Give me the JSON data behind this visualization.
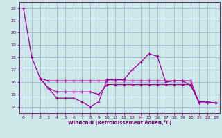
{
  "xlabel": "Windchill (Refroidissement éolien,°C)",
  "background_color": "#cce8e8",
  "grid_color": "#aaaacc",
  "line_color": "#990099",
  "ylim": [
    13.5,
    22.5
  ],
  "xlim": [
    -0.5,
    23.5
  ],
  "yticks": [
    14,
    15,
    16,
    17,
    18,
    19,
    20,
    21,
    22
  ],
  "xticks": [
    0,
    1,
    2,
    3,
    4,
    5,
    6,
    7,
    8,
    9,
    10,
    11,
    12,
    13,
    14,
    15,
    16,
    17,
    18,
    19,
    20,
    21,
    22,
    23
  ],
  "series": [
    {
      "x": [
        0,
        1,
        2,
        3,
        4,
        5,
        6,
        7,
        8,
        9,
        10,
        11,
        12,
        13,
        14,
        15,
        16,
        17,
        18,
        19,
        20,
        21,
        22,
        23
      ],
      "y": [
        22.0,
        18.0,
        16.3,
        15.5,
        14.7,
        14.7,
        14.7,
        14.4,
        14.0,
        14.4,
        16.2,
        16.2,
        16.2,
        17.0,
        17.6,
        18.3,
        18.1,
        16.0,
        16.1,
        16.1,
        15.7,
        14.4,
        14.4,
        14.3
      ]
    },
    {
      "x": [
        2,
        3,
        4,
        5,
        6,
        7,
        8,
        9,
        10,
        11,
        12,
        13,
        14,
        15,
        16,
        17,
        18,
        19,
        20,
        21,
        22,
        23
      ],
      "y": [
        16.3,
        16.1,
        16.1,
        16.1,
        16.1,
        16.1,
        16.1,
        16.1,
        16.1,
        16.1,
        16.1,
        16.1,
        16.1,
        16.1,
        16.1,
        16.1,
        16.1,
        16.1,
        16.1,
        14.3,
        14.3,
        14.3
      ]
    },
    {
      "x": [
        2,
        3,
        4,
        5,
        6,
        7,
        8,
        9,
        10,
        11,
        12,
        13,
        14,
        15,
        16,
        17,
        18,
        19,
        20,
        21,
        22,
        23
      ],
      "y": [
        16.3,
        15.5,
        15.2,
        15.2,
        15.2,
        15.2,
        15.2,
        15.0,
        15.8,
        15.8,
        15.8,
        15.8,
        15.8,
        15.8,
        15.8,
        15.8,
        15.8,
        15.8,
        15.8,
        14.3,
        14.3,
        14.3
      ]
    }
  ]
}
